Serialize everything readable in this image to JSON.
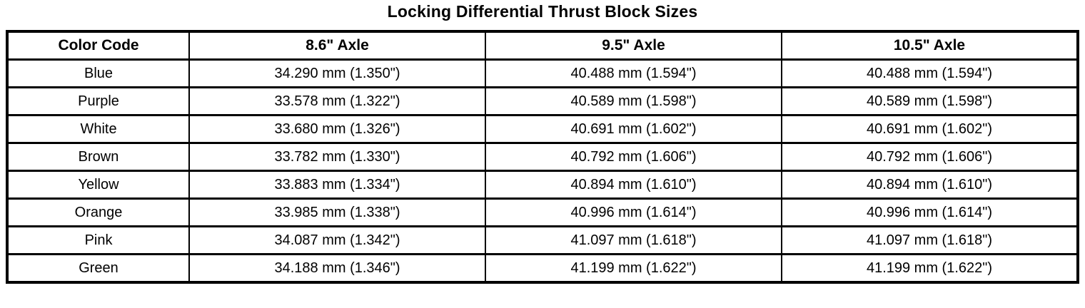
{
  "title": "Locking Differential Thrust Block Sizes",
  "table": {
    "headers": [
      "Color Code",
      "8.6\" Axle",
      "9.5\" Axle",
      "10.5\" Axle"
    ],
    "rows": [
      [
        "Blue",
        "34.290 mm (1.350\")",
        "40.488 mm (1.594\")",
        "40.488 mm (1.594\")"
      ],
      [
        "Purple",
        "33.578 mm (1.322\")",
        "40.589 mm (1.598\")",
        "40.589 mm (1.598\")"
      ],
      [
        "White",
        "33.680 mm (1.326\")",
        "40.691 mm (1.602\")",
        "40.691 mm (1.602\")"
      ],
      [
        "Brown",
        "33.782 mm (1.330\")",
        "40.792 mm (1.606\")",
        "40.792 mm (1.606\")"
      ],
      [
        "Yellow",
        "33.883 mm (1.334\")",
        "40.894 mm (1.610\")",
        "40.894 mm (1.610\")"
      ],
      [
        "Orange",
        "33.985 mm (1.338\")",
        "40.996 mm (1.614\")",
        "40.996 mm (1.614\")"
      ],
      [
        "Pink",
        "34.087 mm (1.342\")",
        "41.097 mm (1.618\")",
        "41.097 mm (1.618\")"
      ],
      [
        "Green",
        "34.188 mm (1.346\")",
        "41.199 mm (1.622\")",
        "41.199 mm (1.622\")"
      ]
    ]
  },
  "colors": {
    "text": "#000000",
    "background": "#ffffff",
    "border": "#000000"
  }
}
